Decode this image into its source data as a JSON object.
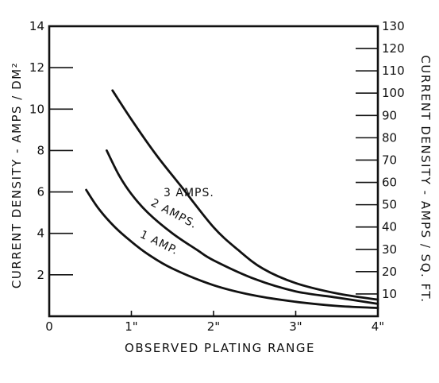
{
  "chart_data": {
    "type": "line",
    "xlabel": "OBSERVED PLATING RANGE",
    "ylabel": "CURRENT DENSITY - AMPS / DM²",
    "ylabel_right": "CURRENT DENSITY - AMPS / SQ. FT.",
    "xlim": [
      0,
      4
    ],
    "ylim": [
      0,
      14
    ],
    "ylim_right": [
      0,
      130
    ],
    "x_ticks": [
      {
        "value": 0,
        "label": "0"
      },
      {
        "value": 1,
        "label": "1\""
      },
      {
        "value": 2,
        "label": "2\""
      },
      {
        "value": 3,
        "label": "3\""
      },
      {
        "value": 4,
        "label": "4\""
      }
    ],
    "y_ticks": [
      {
        "value": 2,
        "label": "2"
      },
      {
        "value": 4,
        "label": "4"
      },
      {
        "value": 6,
        "label": "6"
      },
      {
        "value": 8,
        "label": "8"
      },
      {
        "value": 10,
        "label": "10"
      },
      {
        "value": 12,
        "label": "12"
      },
      {
        "value": 14,
        "label": "14"
      }
    ],
    "y_ticks_right": [
      {
        "value": 10,
        "label": "10"
      },
      {
        "value": 20,
        "label": "20"
      },
      {
        "value": 30,
        "label": "30"
      },
      {
        "value": 40,
        "label": "40"
      },
      {
        "value": 50,
        "label": "50"
      },
      {
        "value": 60,
        "label": "60"
      },
      {
        "value": 70,
        "label": "70"
      },
      {
        "value": 80,
        "label": "80"
      },
      {
        "value": 90,
        "label": "90"
      },
      {
        "value": 100,
        "label": "100"
      },
      {
        "value": 110,
        "label": "110"
      },
      {
        "value": 120,
        "label": "120"
      },
      {
        "value": 130,
        "label": "130"
      }
    ],
    "grid": false,
    "series": [
      {
        "name": "1 AMP.",
        "x": [
          0.45,
          0.6,
          0.8,
          1.0,
          1.2,
          1.5,
          2.0,
          2.5,
          3.0,
          3.5,
          4.0
        ],
        "y": [
          6.1,
          5.2,
          4.3,
          3.6,
          3.0,
          2.3,
          1.5,
          1.0,
          0.7,
          0.5,
          0.4
        ]
      },
      {
        "name": "2 AMPS.",
        "x": [
          0.7,
          0.85,
          1.0,
          1.2,
          1.5,
          1.8,
          2.0,
          2.5,
          3.0,
          3.5,
          4.0
        ],
        "y": [
          8.0,
          6.8,
          5.9,
          5.0,
          4.0,
          3.2,
          2.7,
          1.8,
          1.2,
          0.9,
          0.6
        ]
      },
      {
        "name": "3 AMPS.",
        "x": [
          0.77,
          1.0,
          1.3,
          1.6,
          2.0,
          2.3,
          2.6,
          3.0,
          3.5,
          4.0
        ],
        "y": [
          10.9,
          9.5,
          7.8,
          6.3,
          4.3,
          3.2,
          2.3,
          1.6,
          1.1,
          0.8
        ]
      }
    ]
  }
}
